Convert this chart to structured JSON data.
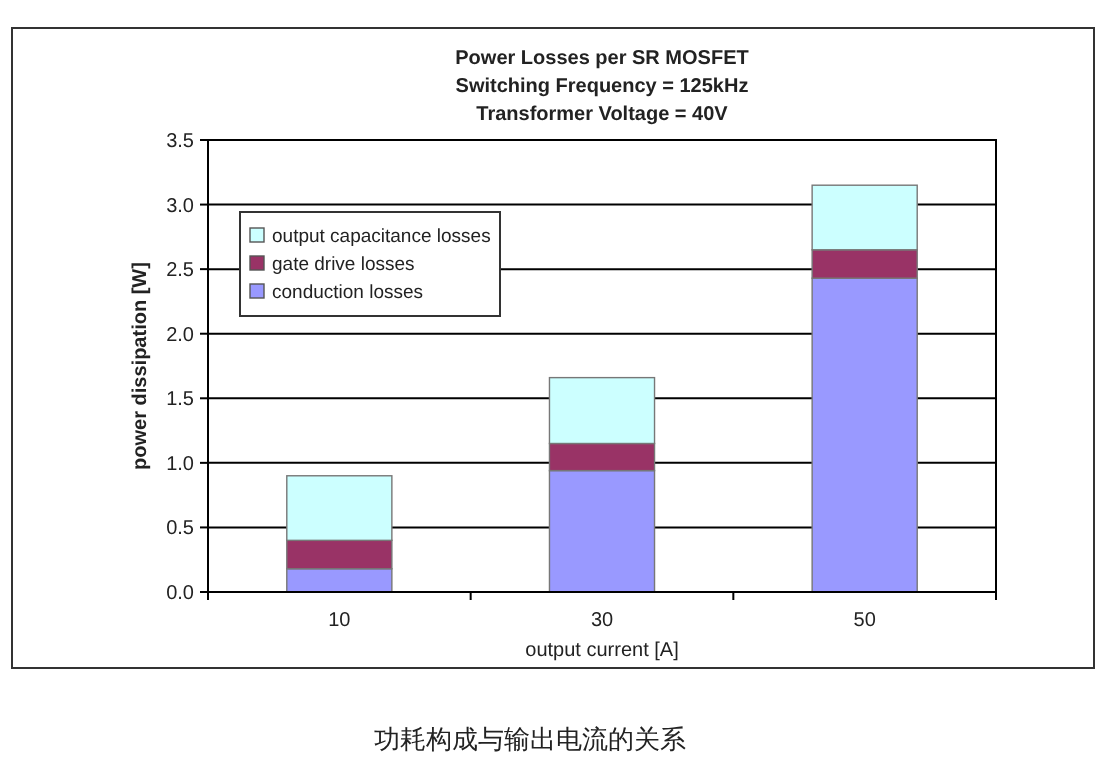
{
  "chart_data": {
    "type": "bar",
    "stacked": true,
    "title": "Power Losses per SR MOSFET",
    "subtitle": "Switching Frequency  = 125kHz",
    "annotations": [
      "Transformer Voltage = 40V",
      "功耗构成与输出电流的关系"
    ],
    "xlabel": "output current [A]",
    "ylabel": "power dissipation [W]",
    "categories": [
      "10",
      "30",
      "50"
    ],
    "series": [
      {
        "name": "conduction losses",
        "color": "#9999ff",
        "values": [
          0.18,
          0.94,
          2.43
        ]
      },
      {
        "name": "gate drive losses",
        "color": "#993366",
        "values": [
          0.22,
          0.21,
          0.22
        ]
      },
      {
        "name": "output capacitance losses",
        "color": "#ccffff",
        "values": [
          0.5,
          0.51,
          0.5
        ]
      }
    ],
    "ylim": [
      0,
      3.5
    ],
    "yticks": [
      {
        "value": 0,
        "label": "0.0"
      },
      {
        "value": 0.5,
        "label": "0.5"
      },
      {
        "value": 1,
        "label": "1.0"
      },
      {
        "value": 1.5,
        "label": "1.5"
      },
      {
        "value": 2,
        "label": "2.0"
      },
      {
        "value": 2.5,
        "label": "2.5"
      },
      {
        "value": 3,
        "label": "3.0"
      },
      {
        "value": 3.5,
        "label": "3.5"
      }
    ],
    "grid": "y",
    "legend": "top left"
  }
}
